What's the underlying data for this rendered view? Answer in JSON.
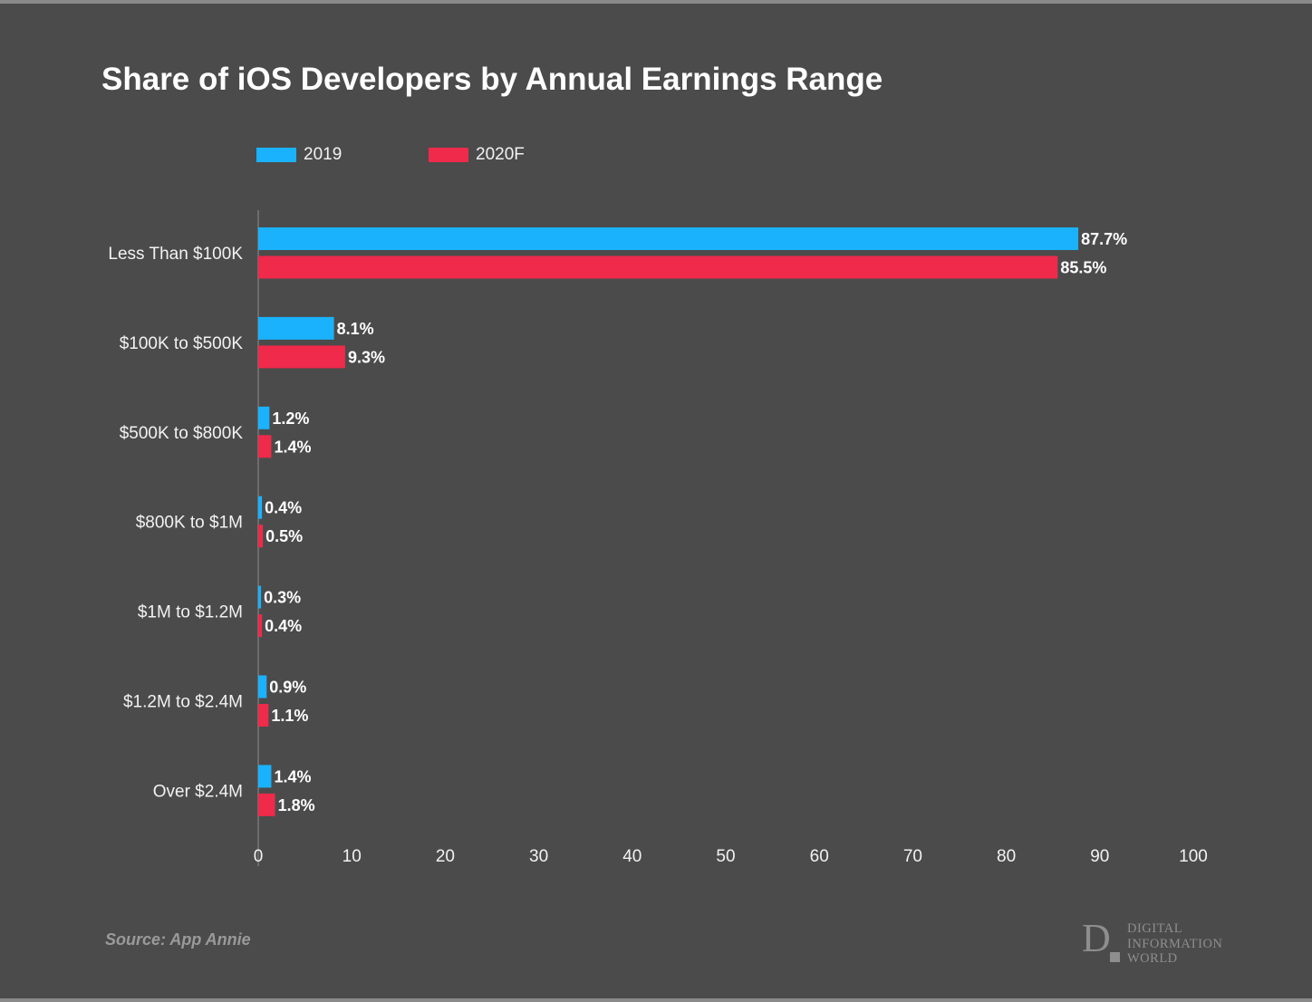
{
  "title": "Share of iOS Developers by Annual Earnings Range",
  "legend": [
    {
      "label": "2019",
      "color": "#1ab2fc"
    },
    {
      "label": "2020F",
      "color": "#ef2a4b"
    }
  ],
  "source": "Source: App Annie",
  "logo": {
    "lines": [
      "DIGITAL",
      "INFORMATION",
      "WORLD"
    ],
    "letter": "D"
  },
  "chart_data": {
    "type": "bar",
    "orientation": "horizontal",
    "categories": [
      "Less Than $100K",
      "$100K to $500K",
      "$500K to $800K",
      "$800K to $1M",
      "$1M to $1.2M",
      "$1.2M to $2.4M",
      "Over $2.4M"
    ],
    "series": [
      {
        "name": "2019",
        "color": "#1ab2fc",
        "values": [
          87.7,
          8.1,
          1.2,
          0.4,
          0.3,
          0.9,
          1.4
        ],
        "labels": [
          "87.7%",
          "8.1%",
          "1.2%",
          "0.4%",
          "0.3%",
          "0.9%",
          "1.4%"
        ]
      },
      {
        "name": "2020F",
        "color": "#ef2a4b",
        "values": [
          85.5,
          9.3,
          1.4,
          0.5,
          0.4,
          1.1,
          1.8
        ],
        "labels": [
          "85.5%",
          "9.3%",
          "1.4%",
          "0.5%",
          "0.4%",
          "1.1%",
          "1.8%"
        ]
      }
    ],
    "xlim": [
      0,
      100
    ],
    "xticks": [
      0,
      10,
      20,
      30,
      40,
      50,
      60,
      70,
      80,
      90,
      100
    ],
    "xtick_labels": [
      "0",
      "10",
      "20",
      "30",
      "40",
      "50",
      "60",
      "70",
      "80",
      "90",
      "100"
    ],
    "grid": false
  }
}
